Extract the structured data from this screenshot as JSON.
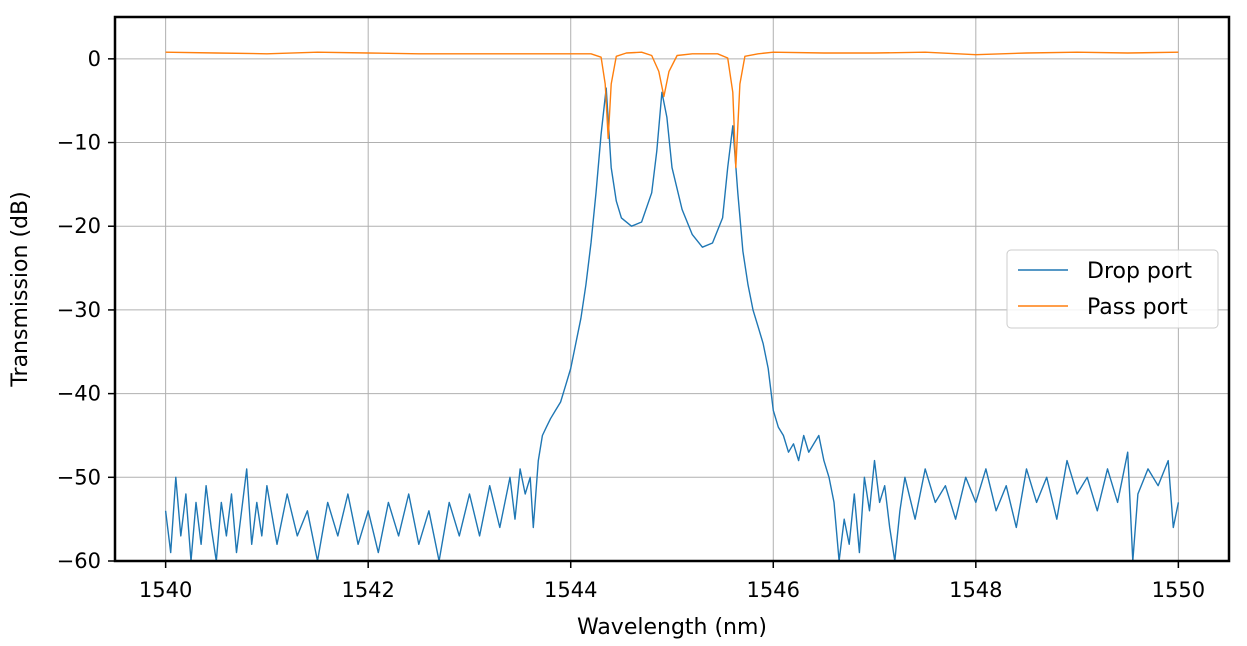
{
  "chart_data": {
    "type": "line",
    "title": "",
    "xlabel": "Wavelength (nm)",
    "ylabel": "Transmission (dB)",
    "xlim": [
      1539.5,
      1550.5
    ],
    "ylim": [
      -60,
      5
    ],
    "xticks": [
      1540,
      1542,
      1544,
      1546,
      1548,
      1550
    ],
    "xtick_labels": [
      "1540",
      "1542",
      "1544",
      "1546",
      "1548",
      "1550"
    ],
    "yticks": [
      0,
      -10,
      -20,
      -30,
      -40,
      -50,
      -60
    ],
    "ytick_labels": [
      "0",
      "−10",
      "−20",
      "−30",
      "−40",
      "−50",
      "−60"
    ],
    "grid": true,
    "legend_position": "right",
    "series": [
      {
        "name": "Drop port",
        "color": "#1f77b4",
        "points": [
          [
            1540.0,
            -54
          ],
          [
            1540.05,
            -59
          ],
          [
            1540.1,
            -50
          ],
          [
            1540.15,
            -57
          ],
          [
            1540.2,
            -52
          ],
          [
            1540.25,
            -60
          ],
          [
            1540.3,
            -53
          ],
          [
            1540.35,
            -58
          ],
          [
            1540.4,
            -51
          ],
          [
            1540.45,
            -56
          ],
          [
            1540.5,
            -60
          ],
          [
            1540.55,
            -53
          ],
          [
            1540.6,
            -57
          ],
          [
            1540.65,
            -52
          ],
          [
            1540.7,
            -59
          ],
          [
            1540.75,
            -54
          ],
          [
            1540.8,
            -49
          ],
          [
            1540.85,
            -58
          ],
          [
            1540.9,
            -53
          ],
          [
            1540.95,
            -57
          ],
          [
            1541.0,
            -51
          ],
          [
            1541.1,
            -58
          ],
          [
            1541.2,
            -52
          ],
          [
            1541.3,
            -57
          ],
          [
            1541.4,
            -54
          ],
          [
            1541.5,
            -60
          ],
          [
            1541.6,
            -53
          ],
          [
            1541.7,
            -57
          ],
          [
            1541.8,
            -52
          ],
          [
            1541.9,
            -58
          ],
          [
            1542.0,
            -54
          ],
          [
            1542.1,
            -59
          ],
          [
            1542.2,
            -53
          ],
          [
            1542.3,
            -57
          ],
          [
            1542.4,
            -52
          ],
          [
            1542.5,
            -58
          ],
          [
            1542.6,
            -54
          ],
          [
            1542.7,
            -60
          ],
          [
            1542.8,
            -53
          ],
          [
            1542.9,
            -57
          ],
          [
            1543.0,
            -52
          ],
          [
            1543.1,
            -57
          ],
          [
            1543.2,
            -51
          ],
          [
            1543.3,
            -56
          ],
          [
            1543.4,
            -50
          ],
          [
            1543.45,
            -55
          ],
          [
            1543.5,
            -49
          ],
          [
            1543.55,
            -52
          ],
          [
            1543.6,
            -50
          ],
          [
            1543.63,
            -56
          ],
          [
            1543.68,
            -48
          ],
          [
            1543.72,
            -45
          ],
          [
            1543.76,
            -44
          ],
          [
            1543.8,
            -43
          ],
          [
            1543.85,
            -42
          ],
          [
            1543.9,
            -41
          ],
          [
            1543.95,
            -39
          ],
          [
            1544.0,
            -37
          ],
          [
            1544.05,
            -34
          ],
          [
            1544.1,
            -31
          ],
          [
            1544.15,
            -27
          ],
          [
            1544.2,
            -22
          ],
          [
            1544.25,
            -16
          ],
          [
            1544.3,
            -9
          ],
          [
            1544.35,
            -3.5
          ],
          [
            1544.4,
            -13
          ],
          [
            1544.45,
            -17
          ],
          [
            1544.5,
            -19
          ],
          [
            1544.6,
            -20
          ],
          [
            1544.7,
            -19.5
          ],
          [
            1544.8,
            -16
          ],
          [
            1544.85,
            -11
          ],
          [
            1544.9,
            -4
          ],
          [
            1544.95,
            -7
          ],
          [
            1545.0,
            -13
          ],
          [
            1545.1,
            -18
          ],
          [
            1545.2,
            -21
          ],
          [
            1545.3,
            -22.5
          ],
          [
            1545.4,
            -22
          ],
          [
            1545.5,
            -19
          ],
          [
            1545.55,
            -13
          ],
          [
            1545.6,
            -8
          ],
          [
            1545.65,
            -16
          ],
          [
            1545.7,
            -23
          ],
          [
            1545.75,
            -27
          ],
          [
            1545.8,
            -30
          ],
          [
            1545.85,
            -32
          ],
          [
            1545.9,
            -34
          ],
          [
            1545.95,
            -37
          ],
          [
            1546.0,
            -42
          ],
          [
            1546.05,
            -44
          ],
          [
            1546.1,
            -45
          ],
          [
            1546.15,
            -47
          ],
          [
            1546.2,
            -46
          ],
          [
            1546.25,
            -48
          ],
          [
            1546.3,
            -45
          ],
          [
            1546.35,
            -47
          ],
          [
            1546.4,
            -46
          ],
          [
            1546.45,
            -45
          ],
          [
            1546.5,
            -48
          ],
          [
            1546.55,
            -50
          ],
          [
            1546.6,
            -53
          ],
          [
            1546.65,
            -60
          ],
          [
            1546.7,
            -55
          ],
          [
            1546.75,
            -58
          ],
          [
            1546.8,
            -52
          ],
          [
            1546.85,
            -59
          ],
          [
            1546.9,
            -50
          ],
          [
            1546.95,
            -54
          ],
          [
            1547.0,
            -48
          ],
          [
            1547.05,
            -53
          ],
          [
            1547.1,
            -51
          ],
          [
            1547.15,
            -56
          ],
          [
            1547.2,
            -60
          ],
          [
            1547.25,
            -54
          ],
          [
            1547.3,
            -50
          ],
          [
            1547.4,
            -55
          ],
          [
            1547.5,
            -49
          ],
          [
            1547.6,
            -53
          ],
          [
            1547.7,
            -51
          ],
          [
            1547.8,
            -55
          ],
          [
            1547.9,
            -50
          ],
          [
            1548.0,
            -53
          ],
          [
            1548.1,
            -49
          ],
          [
            1548.2,
            -54
          ],
          [
            1548.3,
            -51
          ],
          [
            1548.4,
            -56
          ],
          [
            1548.5,
            -49
          ],
          [
            1548.6,
            -53
          ],
          [
            1548.7,
            -50
          ],
          [
            1548.8,
            -55
          ],
          [
            1548.9,
            -48
          ],
          [
            1549.0,
            -52
          ],
          [
            1549.1,
            -50
          ],
          [
            1549.2,
            -54
          ],
          [
            1549.3,
            -49
          ],
          [
            1549.4,
            -53
          ],
          [
            1549.5,
            -47
          ],
          [
            1549.55,
            -60
          ],
          [
            1549.6,
            -52
          ],
          [
            1549.7,
            -49
          ],
          [
            1549.8,
            -51
          ],
          [
            1549.9,
            -48
          ],
          [
            1549.95,
            -56
          ],
          [
            1550.0,
            -53
          ]
        ]
      },
      {
        "name": "Pass port",
        "color": "#ff7f0e",
        "points": [
          [
            1540.0,
            0.8
          ],
          [
            1540.5,
            0.7
          ],
          [
            1541.0,
            0.6
          ],
          [
            1541.5,
            0.8
          ],
          [
            1542.0,
            0.7
          ],
          [
            1542.5,
            0.6
          ],
          [
            1543.0,
            0.6
          ],
          [
            1543.5,
            0.6
          ],
          [
            1544.0,
            0.6
          ],
          [
            1544.2,
            0.6
          ],
          [
            1544.3,
            0.2
          ],
          [
            1544.34,
            -3
          ],
          [
            1544.37,
            -9.5
          ],
          [
            1544.4,
            -3
          ],
          [
            1544.45,
            0.3
          ],
          [
            1544.55,
            0.7
          ],
          [
            1544.7,
            0.8
          ],
          [
            1544.8,
            0.4
          ],
          [
            1544.87,
            -1.5
          ],
          [
            1544.92,
            -4.5
          ],
          [
            1544.97,
            -1.5
          ],
          [
            1545.05,
            0.4
          ],
          [
            1545.2,
            0.6
          ],
          [
            1545.45,
            0.6
          ],
          [
            1545.55,
            0.1
          ],
          [
            1545.6,
            -4
          ],
          [
            1545.63,
            -13
          ],
          [
            1545.67,
            -3
          ],
          [
            1545.72,
            0.3
          ],
          [
            1545.85,
            0.6
          ],
          [
            1546.0,
            0.8
          ],
          [
            1546.5,
            0.7
          ],
          [
            1547.0,
            0.7
          ],
          [
            1547.5,
            0.8
          ],
          [
            1548.0,
            0.5
          ],
          [
            1548.5,
            0.7
          ],
          [
            1549.0,
            0.8
          ],
          [
            1549.5,
            0.7
          ],
          [
            1550.0,
            0.8
          ]
        ]
      }
    ]
  }
}
